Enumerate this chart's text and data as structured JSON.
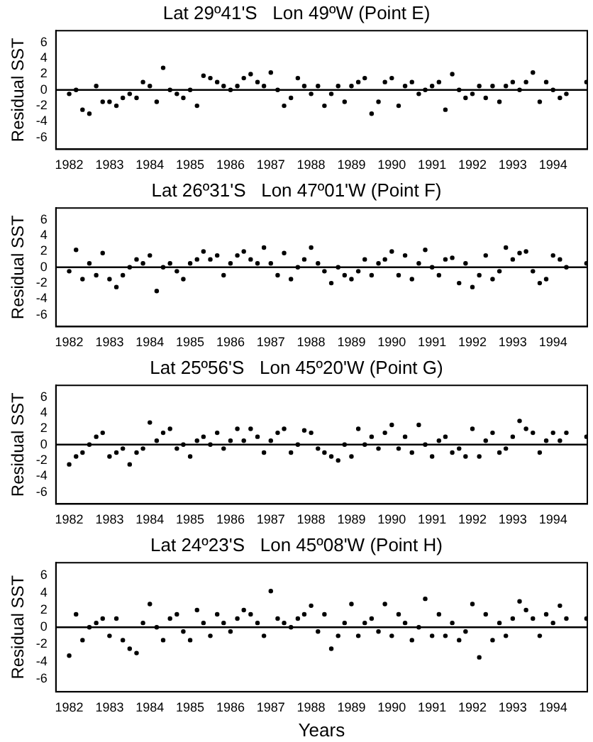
{
  "chart_data": [
    {
      "type": "scatter",
      "title": "Lat 29º41'S   Lon 49ºW (Point E)",
      "ylabel": "Residual SST",
      "color": "#000000",
      "marker": "circle",
      "grid": false,
      "x": [
        1982,
        1982.17,
        1982.33,
        1982.5,
        1982.67,
        1982.83,
        1983,
        1983.17,
        1983.33,
        1983.5,
        1983.67,
        1983.83,
        1984,
        1984.17,
        1984.33,
        1984.5,
        1984.67,
        1984.83,
        1985,
        1985.17,
        1985.33,
        1985.5,
        1985.67,
        1985.83,
        1986,
        1986.17,
        1986.33,
        1986.5,
        1986.67,
        1986.83,
        1987,
        1987.17,
        1987.33,
        1987.5,
        1987.67,
        1987.83,
        1988,
        1988.17,
        1988.33,
        1988.5,
        1988.67,
        1988.83,
        1989,
        1989.17,
        1989.33,
        1989.5,
        1989.67,
        1989.83,
        1990,
        1990.17,
        1990.33,
        1990.5,
        1990.67,
        1990.83,
        1991,
        1991.17,
        1991.33,
        1991.5,
        1991.67,
        1991.83,
        1992,
        1992.17,
        1992.33,
        1992.5,
        1992.67,
        1992.83,
        1993,
        1993.17,
        1993.33,
        1993.5,
        1993.67,
        1993.83,
        1994,
        1994.17,
        1994.33,
        1994.5,
        1994.67,
        1994.83
      ],
      "values": [
        -0.5,
        0,
        -2.5,
        -3,
        0.5,
        -1.5,
        -1.5,
        -2,
        -1,
        -0.5,
        -1,
        1,
        0.5,
        -1.5,
        2.8,
        0,
        -0.5,
        -1,
        0,
        -2,
        1.8,
        1.5,
        1,
        0.5,
        0,
        0.5,
        1.5,
        2,
        1,
        0.5,
        2.2,
        0,
        -2,
        -1,
        1.5,
        0.5,
        -0.5,
        0.5,
        -2,
        -0.5,
        0.5,
        -1.5,
        0.5,
        1,
        1.5,
        -3,
        -1.5,
        1,
        1.5,
        -2,
        0.5,
        1,
        -0.5,
        0,
        0.5,
        1,
        -2.5,
        2,
        0,
        -1,
        -0.5,
        0.5,
        -1,
        0.5,
        -1.5,
        0.5,
        1,
        0,
        1,
        2.2,
        -1.5,
        1,
        0,
        -1,
        -0.5,
        null,
        null,
        1
      ],
      "xlim": [
        1981.67,
        1994.85
      ],
      "xticks": [
        1982,
        1983,
        1984,
        1985,
        1986,
        1987,
        1988,
        1989,
        1990,
        1991,
        1992,
        1993,
        1994
      ],
      "ylim": [
        -7.5,
        7.5
      ],
      "yticks": [
        -6,
        -4,
        -2,
        0,
        2,
        4,
        6
      ],
      "ref_lines": [
        {
          "axis": "y",
          "value": 0
        }
      ]
    },
    {
      "type": "scatter",
      "title": "Lat 26º31'S   Lon 47º01'W (Point F)",
      "ylabel": "Residual SST",
      "color": "#000000",
      "marker": "circle",
      "grid": false,
      "x": [
        1982,
        1982.17,
        1982.33,
        1982.5,
        1982.67,
        1982.83,
        1983,
        1983.17,
        1983.33,
        1983.5,
        1983.67,
        1983.83,
        1984,
        1984.17,
        1984.33,
        1984.5,
        1984.67,
        1984.83,
        1985,
        1985.17,
        1985.33,
        1985.5,
        1985.67,
        1985.83,
        1986,
        1986.17,
        1986.33,
        1986.5,
        1986.67,
        1986.83,
        1987,
        1987.17,
        1987.33,
        1987.5,
        1987.67,
        1987.83,
        1988,
        1988.17,
        1988.33,
        1988.5,
        1988.67,
        1988.83,
        1989,
        1989.17,
        1989.33,
        1989.5,
        1989.67,
        1989.83,
        1990,
        1990.17,
        1990.33,
        1990.5,
        1990.67,
        1990.83,
        1991,
        1991.17,
        1991.33,
        1991.5,
        1991.67,
        1991.83,
        1992,
        1992.17,
        1992.33,
        1992.5,
        1992.67,
        1992.83,
        1993,
        1993.17,
        1993.33,
        1993.5,
        1993.67,
        1993.83,
        1994,
        1994.17,
        1994.33,
        1994.5,
        1994.67,
        1994.83
      ],
      "values": [
        -0.5,
        2.2,
        -1.5,
        0.5,
        -1,
        1.8,
        -1.5,
        -2.5,
        -1,
        0,
        1,
        0.5,
        1.5,
        -3,
        0,
        0.5,
        -0.5,
        -1.5,
        0.5,
        1,
        2,
        1,
        1.5,
        -1,
        0.5,
        1.5,
        2,
        1,
        0.5,
        2.5,
        0.5,
        -1,
        1.8,
        -1.5,
        0,
        1,
        2.5,
        0.5,
        -0.5,
        -2,
        0,
        -1,
        -1.5,
        -0.5,
        1,
        -1,
        0.5,
        1,
        2,
        -1,
        1.5,
        -1.5,
        0.5,
        2.2,
        0,
        -1,
        1,
        1.2,
        -2,
        0.5,
        -2.5,
        -1,
        1.5,
        -1.5,
        -0.5,
        2.5,
        1,
        1.8,
        2,
        -0.5,
        -2,
        -1.5,
        1.5,
        1,
        0,
        null,
        null,
        0.5
      ],
      "xlim": [
        1981.67,
        1994.85
      ],
      "xticks": [
        1982,
        1983,
        1984,
        1985,
        1986,
        1987,
        1988,
        1989,
        1990,
        1991,
        1992,
        1993,
        1994
      ],
      "ylim": [
        -7.5,
        7.5
      ],
      "yticks": [
        -6,
        -4,
        -2,
        0,
        2,
        4,
        6
      ],
      "ref_lines": [
        {
          "axis": "y",
          "value": 0
        }
      ]
    },
    {
      "type": "scatter",
      "title": "Lat 25º56'S   Lon 45º20'W (Point G)",
      "ylabel": "Residual SST",
      "color": "#000000",
      "marker": "circle",
      "grid": false,
      "x": [
        1982,
        1982.17,
        1982.33,
        1982.5,
        1982.67,
        1982.83,
        1983,
        1983.17,
        1983.33,
        1983.5,
        1983.67,
        1983.83,
        1984,
        1984.17,
        1984.33,
        1984.5,
        1984.67,
        1984.83,
        1985,
        1985.17,
        1985.33,
        1985.5,
        1985.67,
        1985.83,
        1986,
        1986.17,
        1986.33,
        1986.5,
        1986.67,
        1986.83,
        1987,
        1987.17,
        1987.33,
        1987.5,
        1987.67,
        1987.83,
        1988,
        1988.17,
        1988.33,
        1988.5,
        1988.67,
        1988.83,
        1989,
        1989.17,
        1989.33,
        1989.5,
        1989.67,
        1989.83,
        1990,
        1990.17,
        1990.33,
        1990.5,
        1990.67,
        1990.83,
        1991,
        1991.17,
        1991.33,
        1991.5,
        1991.67,
        1991.83,
        1992,
        1992.17,
        1992.33,
        1992.5,
        1992.67,
        1992.83,
        1993,
        1993.17,
        1993.33,
        1993.5,
        1993.67,
        1993.83,
        1994,
        1994.17,
        1994.33,
        1994.5,
        1994.67,
        1994.83
      ],
      "values": [
        -2.5,
        -1.5,
        -1,
        0,
        1,
        1.5,
        -1.5,
        -1,
        -0.5,
        -2.5,
        -1,
        -0.5,
        2.8,
        0.5,
        1.5,
        2,
        -0.5,
        0,
        -1.5,
        0.5,
        1,
        0,
        1.5,
        -0.5,
        0.5,
        2,
        0.5,
        2,
        1,
        -1,
        0.5,
        1.5,
        2,
        -1,
        0,
        1.8,
        1.5,
        -0.5,
        -1,
        -1.5,
        -2,
        0,
        -1.5,
        2,
        0,
        1,
        -0.5,
        1.5,
        2.5,
        -0.5,
        1,
        -1,
        2.5,
        0,
        -1.5,
        0.5,
        1,
        -1,
        -0.5,
        -1.5,
        2,
        -1.5,
        0.5,
        1.5,
        -1,
        -0.5,
        1,
        3,
        2,
        1.5,
        -1,
        0.5,
        1.5,
        0.5,
        1.5,
        null,
        null,
        1
      ],
      "xlim": [
        1981.67,
        1994.85
      ],
      "xticks": [
        1982,
        1983,
        1984,
        1985,
        1986,
        1987,
        1988,
        1989,
        1990,
        1991,
        1992,
        1993,
        1994
      ],
      "ylim": [
        -7.5,
        7.5
      ],
      "yticks": [
        -6,
        -4,
        -2,
        0,
        2,
        4,
        6
      ],
      "ref_lines": [
        {
          "axis": "y",
          "value": 0
        }
      ]
    },
    {
      "type": "scatter",
      "title": "Lat 24º23'S   Lon 45º08'W (Point H)",
      "xlabel": "Years",
      "ylabel": "Residual SST",
      "color": "#000000",
      "marker": "circle",
      "grid": false,
      "x": [
        1982,
        1982.17,
        1982.33,
        1982.5,
        1982.67,
        1982.83,
        1983,
        1983.17,
        1983.33,
        1983.5,
        1983.67,
        1983.83,
        1984,
        1984.17,
        1984.33,
        1984.5,
        1984.67,
        1984.83,
        1985,
        1985.17,
        1985.33,
        1985.5,
        1985.67,
        1985.83,
        1986,
        1986.17,
        1986.33,
        1986.5,
        1986.67,
        1986.83,
        1987,
        1987.17,
        1987.33,
        1987.5,
        1987.67,
        1987.83,
        1988,
        1988.17,
        1988.33,
        1988.5,
        1988.67,
        1988.83,
        1989,
        1989.17,
        1989.33,
        1989.5,
        1989.67,
        1989.83,
        1990,
        1990.17,
        1990.33,
        1990.5,
        1990.67,
        1990.83,
        1991,
        1991.17,
        1991.33,
        1991.5,
        1991.67,
        1991.83,
        1992,
        1992.17,
        1992.33,
        1992.5,
        1992.67,
        1992.83,
        1993,
        1993.17,
        1993.33,
        1993.5,
        1993.67,
        1993.83,
        1994,
        1994.17,
        1994.33,
        1994.5,
        1994.67,
        1994.83
      ],
      "values": [
        -3.3,
        1.5,
        -1.5,
        0,
        0.5,
        1,
        -1,
        1,
        -1.5,
        -2.5,
        -3,
        0.5,
        2.7,
        0,
        -1.5,
        1,
        1.5,
        -0.5,
        -1.5,
        2,
        0.5,
        -1,
        1.5,
        0.5,
        -0.5,
        1,
        2,
        1.5,
        0.5,
        -1,
        4.2,
        1,
        0.5,
        0,
        1,
        1.5,
        2.5,
        -0.5,
        1.5,
        -2.5,
        -1,
        0.5,
        2.7,
        -1,
        0.5,
        1,
        -0.5,
        2.7,
        -1,
        1.5,
        0.5,
        -1.5,
        0,
        3.3,
        -1,
        1.5,
        -1,
        0.5,
        -1.5,
        -0.5,
        2.7,
        -3.5,
        1.5,
        -1.5,
        0.5,
        -1,
        1,
        3,
        2,
        1,
        -1,
        1.5,
        0.5,
        2.5,
        1,
        null,
        null,
        1
      ],
      "xlim": [
        1981.67,
        1994.85
      ],
      "xticks": [
        1982,
        1983,
        1984,
        1985,
        1986,
        1987,
        1988,
        1989,
        1990,
        1991,
        1992,
        1993,
        1994
      ],
      "ylim": [
        -7.5,
        7.5
      ],
      "yticks": [
        -6,
        -4,
        -2,
        0,
        2,
        4,
        6
      ],
      "ref_lines": [
        {
          "axis": "y",
          "value": 0
        }
      ]
    }
  ]
}
